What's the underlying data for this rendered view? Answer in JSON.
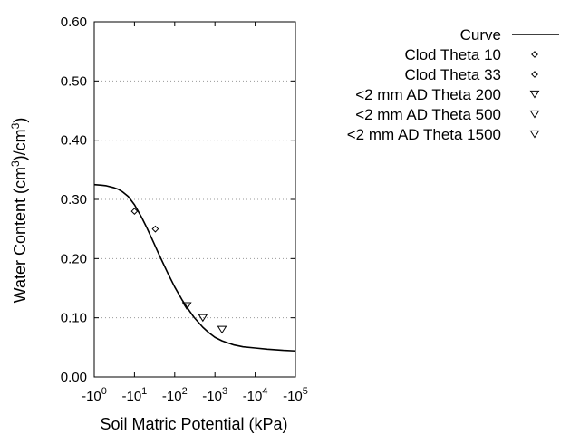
{
  "chart_data": {
    "type": "scatter",
    "title": "",
    "xlabel": "Soil Matric Potential (kPa)",
    "ylabel_main": "Water Content (cm",
    "ylabel_mid": ")/cm",
    "ylabel_end": ")",
    "ylabel_sup": "3",
    "x_scale": "log10",
    "x_sign": "-",
    "xlim": [
      1,
      100000
    ],
    "ylim": [
      0,
      0.6
    ],
    "grid": true,
    "legend_position": "top-right",
    "x_ticks": [
      {
        "value": 1,
        "base": "-10",
        "exp": "0"
      },
      {
        "value": 10,
        "base": "-10",
        "exp": "1"
      },
      {
        "value": 100,
        "base": "-10",
        "exp": "2"
      },
      {
        "value": 1000,
        "base": "-10",
        "exp": "3"
      },
      {
        "value": 10000,
        "base": "-10",
        "exp": "4"
      },
      {
        "value": 100000,
        "base": "-10",
        "exp": "5"
      }
    ],
    "y_ticks": [
      {
        "value": 0.0,
        "label": "0.00"
      },
      {
        "value": 0.1,
        "label": "0.10"
      },
      {
        "value": 0.2,
        "label": "0.20"
      },
      {
        "value": 0.3,
        "label": "0.30"
      },
      {
        "value": 0.4,
        "label": "0.40"
      },
      {
        "value": 0.5,
        "label": "0.50"
      },
      {
        "value": 0.6,
        "label": "0.60"
      }
    ],
    "series": [
      {
        "name": "Curve",
        "kind": "line",
        "color": "#000000",
        "x": [
          1,
          1.5,
          2,
          3,
          4,
          5,
          7,
          10,
          15,
          20,
          30,
          40,
          50,
          70,
          100,
          150,
          200,
          300,
          500,
          700,
          1000,
          1500,
          2000,
          3000,
          5000,
          10000,
          20000,
          50000,
          100000
        ],
        "y": [
          0.325,
          0.324,
          0.323,
          0.32,
          0.317,
          0.313,
          0.305,
          0.291,
          0.27,
          0.253,
          0.227,
          0.208,
          0.194,
          0.173,
          0.152,
          0.131,
          0.118,
          0.101,
          0.084,
          0.075,
          0.067,
          0.061,
          0.058,
          0.054,
          0.051,
          0.049,
          0.047,
          0.045,
          0.044
        ]
      },
      {
        "name": "Clod Theta 10",
        "kind": "marker",
        "marker": "diamond",
        "x": [
          10
        ],
        "y": [
          0.28
        ]
      },
      {
        "name": "Clod Theta 33",
        "kind": "marker",
        "marker": "diamond",
        "x": [
          33
        ],
        "y": [
          0.25
        ]
      },
      {
        "name": "<2 mm AD Theta 200",
        "kind": "marker",
        "marker": "triangle-down",
        "x": [
          200
        ],
        "y": [
          0.12
        ]
      },
      {
        "name": "<2 mm AD Theta 500",
        "kind": "marker",
        "marker": "triangle-down",
        "x": [
          500
        ],
        "y": [
          0.1
        ]
      },
      {
        "name": "<2 mm AD Theta 1500",
        "kind": "marker",
        "marker": "triangle-down",
        "x": [
          1500
        ],
        "y": [
          0.08
        ]
      }
    ]
  }
}
